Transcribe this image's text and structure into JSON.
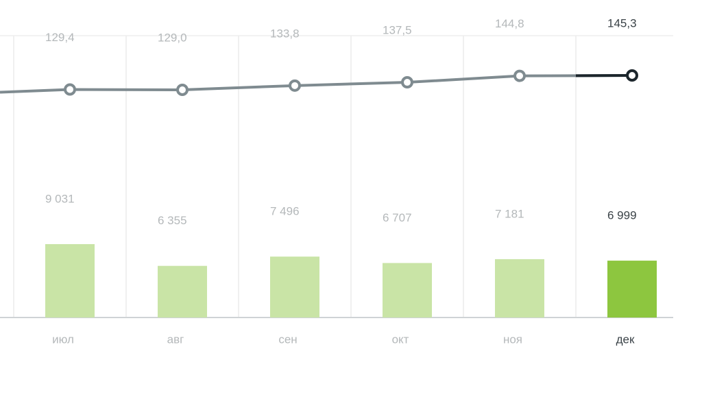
{
  "chart_data": {
    "type": "combo",
    "categories": [
      "июл",
      "авг",
      "сен",
      "окт",
      "ноя",
      "дек"
    ],
    "line": {
      "values": [
        129.4,
        129.0,
        133.8,
        137.5,
        144.8,
        145.3
      ],
      "value_labels": [
        "129,4",
        "129,0",
        "133,8",
        "137,5",
        "144,8",
        "145,3"
      ],
      "color": "#7f8b90",
      "highlight_color": "#1c262c"
    },
    "bars": {
      "values": [
        9031,
        6355,
        7496,
        6707,
        7181,
        6999
      ],
      "value_labels": [
        "9 031",
        "6 355",
        "7 496",
        "6 707",
        "7 181",
        "6 999"
      ],
      "colors": [
        "#c9e4a6",
        "#c9e4a6",
        "#c9e4a6",
        "#c9e4a6",
        "#c9e4a6",
        "#8dc63f"
      ]
    },
    "grid": true
  }
}
